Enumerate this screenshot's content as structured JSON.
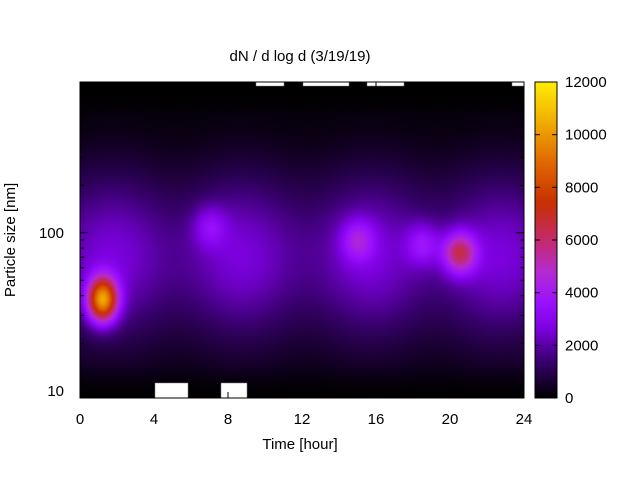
{
  "chart_data": {
    "type": "heatmap",
    "title": "dN / d log d (3/19/19)",
    "xlabel": "Time [hour]",
    "ylabel": "Particle size [nm]",
    "xlim": [
      0,
      24
    ],
    "ylim": [
      9,
      900
    ],
    "y_scale": "log",
    "x_ticks": [
      0,
      4,
      8,
      12,
      16,
      20,
      24
    ],
    "y_ticks": [
      10,
      100
    ],
    "colorbar": {
      "range": [
        0,
        12000
      ],
      "ticks": [
        0,
        2000,
        4000,
        6000,
        8000,
        10000,
        12000
      ],
      "colormap": "black-purple-red-orange-yellow"
    },
    "features": [
      {
        "label": "peak concentration",
        "time_hour": 1.2,
        "size_nm": 38,
        "value": 10500
      },
      {
        "label": "secondary mode",
        "time_hour": 20.5,
        "size_nm": 75,
        "value": 6500
      },
      {
        "label": "secondary mode",
        "time_hour": 15,
        "size_nm": 90,
        "value": 4200
      },
      {
        "label": "secondary mode",
        "time_hour": 18.5,
        "size_nm": 85,
        "value": 4000
      },
      {
        "label": "secondary mode",
        "time_hour": 7,
        "size_nm": 110,
        "value": 3600
      }
    ],
    "background_level": 2600,
    "grid": false
  }
}
